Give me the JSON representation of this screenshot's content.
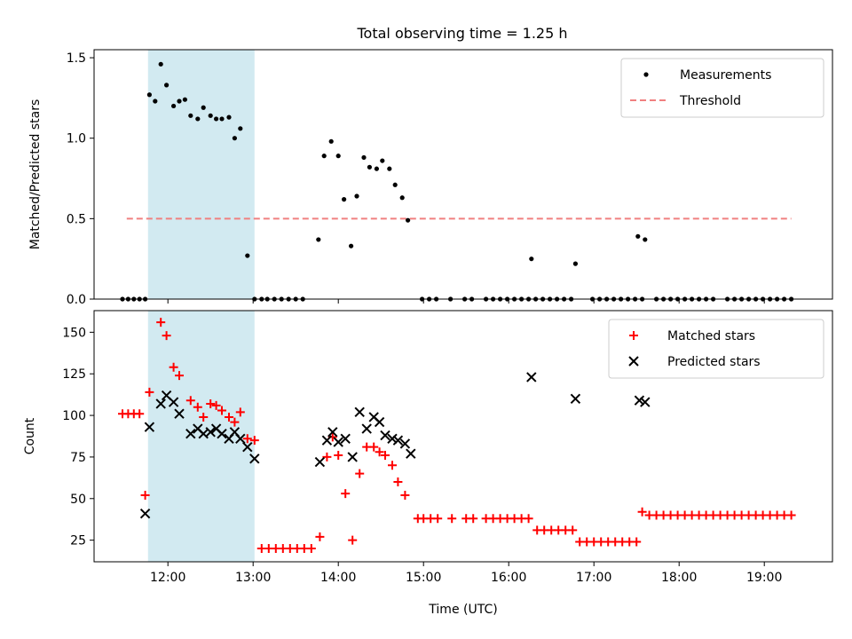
{
  "title": "Total observing time = 1.25 h",
  "colors": {
    "measurement": "#000000",
    "threshold": "#f08080",
    "matched": "#ff0000",
    "predicted": "#000000",
    "span": "#add8e6"
  },
  "chart_data": [
    {
      "type": "scatter",
      "ylabel": "Matched/Predicted stars",
      "xlim": [
        "11:08",
        "19:48"
      ],
      "ylim": [
        0,
        1.55
      ],
      "xticks": [
        "12:00",
        "13:00",
        "14:00",
        "15:00",
        "16:00",
        "17:00",
        "18:00",
        "19:00"
      ],
      "yticks": [
        "0.0",
        "0.5",
        "1.0",
        "1.5"
      ],
      "ytick_values": [
        0,
        0.5,
        1.0,
        1.5
      ],
      "shaded_span": [
        "11:46",
        "13:01"
      ],
      "legend_position": "upper right",
      "threshold": {
        "name": "Threshold",
        "value": 0.5,
        "x_range": [
          "11:31",
          "19:19"
        ]
      },
      "series": [
        {
          "name": "Measurements",
          "points": [
            [
              "11:28",
              0
            ],
            [
              "11:32",
              0
            ],
            [
              "11:36",
              0
            ],
            [
              "11:40",
              0
            ],
            [
              "11:44",
              0
            ],
            [
              "11:47",
              1.27
            ],
            [
              "11:51",
              1.23
            ],
            [
              "11:55",
              1.46
            ],
            [
              "11:59",
              1.33
            ],
            [
              "12:04",
              1.2
            ],
            [
              "12:08",
              1.23
            ],
            [
              "12:12",
              1.24
            ],
            [
              "12:16",
              1.14
            ],
            [
              "12:21",
              1.12
            ],
            [
              "12:25",
              1.19
            ],
            [
              "12:30",
              1.14
            ],
            [
              "12:34",
              1.12
            ],
            [
              "12:38",
              1.12
            ],
            [
              "12:43",
              1.13
            ],
            [
              "12:47",
              1.0
            ],
            [
              "12:51",
              1.06
            ],
            [
              "12:56",
              0.27
            ],
            [
              "13:01",
              0
            ],
            [
              "13:06",
              0
            ],
            [
              "13:10",
              0
            ],
            [
              "13:15",
              0
            ],
            [
              "13:20",
              0
            ],
            [
              "13:25",
              0
            ],
            [
              "13:30",
              0
            ],
            [
              "13:35",
              0
            ],
            [
              "13:46",
              0.37
            ],
            [
              "13:50",
              0.89
            ],
            [
              "13:55",
              0.98
            ],
            [
              "14:00",
              0.89
            ],
            [
              "14:04",
              0.62
            ],
            [
              "14:09",
              0.33
            ],
            [
              "14:13",
              0.64
            ],
            [
              "14:18",
              0.88
            ],
            [
              "14:22",
              0.82
            ],
            [
              "14:27",
              0.81
            ],
            [
              "14:31",
              0.86
            ],
            [
              "14:36",
              0.81
            ],
            [
              "14:40",
              0.71
            ],
            [
              "14:45",
              0.63
            ],
            [
              "14:49",
              0.49
            ],
            [
              "14:59",
              0
            ],
            [
              "15:04",
              0
            ],
            [
              "15:09",
              0
            ],
            [
              "15:19",
              0
            ],
            [
              "15:29",
              0
            ],
            [
              "15:34",
              0
            ],
            [
              "15:44",
              0
            ],
            [
              "15:49",
              0
            ],
            [
              "15:54",
              0
            ],
            [
              "15:59",
              0
            ],
            [
              "16:04",
              0
            ],
            [
              "16:09",
              0
            ],
            [
              "16:14",
              0
            ],
            [
              "16:19",
              0
            ],
            [
              "16:24",
              0
            ],
            [
              "16:29",
              0
            ],
            [
              "16:34",
              0
            ],
            [
              "16:39",
              0
            ],
            [
              "16:44",
              0
            ],
            [
              "16:16",
              0.25
            ],
            [
              "16:47",
              0.22
            ],
            [
              "16:59",
              0
            ],
            [
              "17:04",
              0
            ],
            [
              "17:09",
              0
            ],
            [
              "17:14",
              0
            ],
            [
              "17:19",
              0
            ],
            [
              "17:24",
              0
            ],
            [
              "17:29",
              0
            ],
            [
              "17:34",
              0
            ],
            [
              "17:31",
              0.39
            ],
            [
              "17:36",
              0.37
            ],
            [
              "17:44",
              0
            ],
            [
              "17:49",
              0
            ],
            [
              "17:54",
              0
            ],
            [
              "17:59",
              0
            ],
            [
              "18:04",
              0
            ],
            [
              "18:09",
              0
            ],
            [
              "18:14",
              0
            ],
            [
              "18:19",
              0
            ],
            [
              "18:24",
              0
            ],
            [
              "18:34",
              0
            ],
            [
              "18:39",
              0
            ],
            [
              "18:44",
              0
            ],
            [
              "18:49",
              0
            ],
            [
              "18:54",
              0
            ],
            [
              "18:59",
              0
            ],
            [
              "19:04",
              0
            ],
            [
              "19:09",
              0
            ],
            [
              "19:14",
              0
            ],
            [
              "19:19",
              0
            ]
          ]
        }
      ]
    },
    {
      "type": "scatter",
      "xlabel": "Time (UTC)",
      "ylabel": "Count",
      "xlim": [
        "11:08",
        "19:48"
      ],
      "ylim": [
        12,
        163
      ],
      "xticks": [
        "12:00",
        "13:00",
        "14:00",
        "15:00",
        "16:00",
        "17:00",
        "18:00",
        "19:00"
      ],
      "yticks": [
        "25",
        "50",
        "75",
        "100",
        "125",
        "150"
      ],
      "ytick_values": [
        25,
        50,
        75,
        100,
        125,
        150
      ],
      "shaded_span": [
        "11:46",
        "13:01"
      ],
      "legend_position": "upper right",
      "series": [
        {
          "name": "Matched stars",
          "marker": "plus",
          "points": [
            [
              "11:28",
              101
            ],
            [
              "11:32",
              101
            ],
            [
              "11:36",
              101
            ],
            [
              "11:40",
              101
            ],
            [
              "11:44",
              52
            ],
            [
              "11:47",
              114
            ],
            [
              "11:55",
              156
            ],
            [
              "11:59",
              148
            ],
            [
              "12:04",
              129
            ],
            [
              "12:08",
              124
            ],
            [
              "12:16",
              109
            ],
            [
              "12:21",
              105
            ],
            [
              "12:25",
              99
            ],
            [
              "12:30",
              107
            ],
            [
              "12:34",
              106
            ],
            [
              "12:38",
              103
            ],
            [
              "12:43",
              99
            ],
            [
              "12:47",
              96
            ],
            [
              "12:51",
              102
            ],
            [
              "12:56",
              86
            ],
            [
              "13:01",
              85
            ],
            [
              "13:06",
              20
            ],
            [
              "13:11",
              20
            ],
            [
              "13:16",
              20
            ],
            [
              "13:21",
              20
            ],
            [
              "13:26",
              20
            ],
            [
              "13:31",
              20
            ],
            [
              "13:36",
              20
            ],
            [
              "13:41",
              20
            ],
            [
              "13:47",
              27
            ],
            [
              "13:52",
              75
            ],
            [
              "13:56",
              87
            ],
            [
              "14:00",
              76
            ],
            [
              "14:05",
              53
            ],
            [
              "14:10",
              25
            ],
            [
              "14:15",
              65
            ],
            [
              "14:20",
              81
            ],
            [
              "14:25",
              81
            ],
            [
              "14:29",
              78
            ],
            [
              "14:33",
              76
            ],
            [
              "14:38",
              70
            ],
            [
              "14:42",
              60
            ],
            [
              "14:47",
              52
            ],
            [
              "14:56",
              38
            ],
            [
              "15:00",
              38
            ],
            [
              "15:05",
              38
            ],
            [
              "15:10",
              38
            ],
            [
              "15:20",
              38
            ],
            [
              "15:30",
              38
            ],
            [
              "15:35",
              38
            ],
            [
              "15:44",
              38
            ],
            [
              "15:49",
              38
            ],
            [
              "15:54",
              38
            ],
            [
              "15:59",
              38
            ],
            [
              "16:04",
              38
            ],
            [
              "16:09",
              38
            ],
            [
              "16:14",
              38
            ],
            [
              "16:20",
              31
            ],
            [
              "16:25",
              31
            ],
            [
              "16:30",
              31
            ],
            [
              "16:35",
              31
            ],
            [
              "16:40",
              31
            ],
            [
              "16:45",
              31
            ],
            [
              "16:50",
              24
            ],
            [
              "16:55",
              24
            ],
            [
              "17:00",
              24
            ],
            [
              "17:05",
              24
            ],
            [
              "17:10",
              24
            ],
            [
              "17:15",
              24
            ],
            [
              "17:20",
              24
            ],
            [
              "17:25",
              24
            ],
            [
              "17:30",
              24
            ],
            [
              "17:34",
              42
            ],
            [
              "17:39",
              40
            ],
            [
              "17:44",
              40
            ],
            [
              "17:49",
              40
            ],
            [
              "17:54",
              40
            ],
            [
              "17:59",
              40
            ],
            [
              "18:04",
              40
            ],
            [
              "18:09",
              40
            ],
            [
              "18:14",
              40
            ],
            [
              "18:19",
              40
            ],
            [
              "18:24",
              40
            ],
            [
              "18:29",
              40
            ],
            [
              "18:34",
              40
            ],
            [
              "18:39",
              40
            ],
            [
              "18:44",
              40
            ],
            [
              "18:49",
              40
            ],
            [
              "18:54",
              40
            ],
            [
              "18:59",
              40
            ],
            [
              "19:04",
              40
            ],
            [
              "19:09",
              40
            ],
            [
              "19:14",
              40
            ],
            [
              "19:19",
              40
            ]
          ]
        },
        {
          "name": "Predicted stars",
          "marker": "x",
          "points": [
            [
              "11:44",
              41
            ],
            [
              "11:47",
              93
            ],
            [
              "11:55",
              107
            ],
            [
              "11:59",
              112
            ],
            [
              "12:04",
              108
            ],
            [
              "12:08",
              101
            ],
            [
              "12:16",
              89
            ],
            [
              "12:21",
              92
            ],
            [
              "12:25",
              89
            ],
            [
              "12:30",
              90
            ],
            [
              "12:34",
              92
            ],
            [
              "12:38",
              89
            ],
            [
              "12:43",
              86
            ],
            [
              "12:47",
              90
            ],
            [
              "12:51",
              86
            ],
            [
              "12:56",
              81
            ],
            [
              "13:01",
              74
            ],
            [
              "13:47",
              72
            ],
            [
              "13:52",
              85
            ],
            [
              "13:56",
              90
            ],
            [
              "14:00",
              84
            ],
            [
              "14:05",
              86
            ],
            [
              "14:10",
              75
            ],
            [
              "14:15",
              102
            ],
            [
              "14:20",
              92
            ],
            [
              "14:25",
              99
            ],
            [
              "14:29",
              96
            ],
            [
              "14:33",
              88
            ],
            [
              "14:38",
              86
            ],
            [
              "14:42",
              85
            ],
            [
              "14:47",
              83
            ],
            [
              "14:51",
              77
            ],
            [
              "16:16",
              123
            ],
            [
              "16:47",
              110
            ],
            [
              "17:32",
              109
            ],
            [
              "17:36",
              108
            ]
          ]
        }
      ]
    }
  ]
}
